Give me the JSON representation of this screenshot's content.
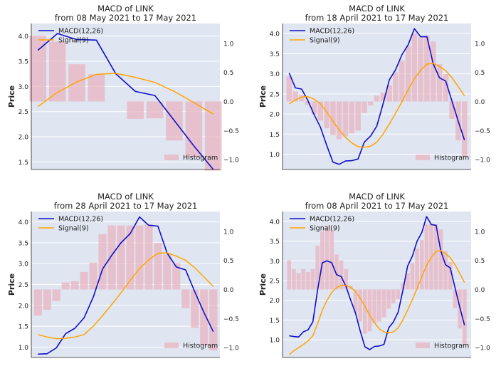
{
  "chart_data": [
    {
      "type": "line",
      "title": "MACD of LINK",
      "subtitle": "from 08 May 2021 to 17 May 2021",
      "ylabel": "Price",
      "ylim": [
        1.35,
        4.25
      ],
      "y2lim": [
        -1.17,
        1.34
      ],
      "yticks": [
        1.5,
        2.0,
        2.5,
        3.0,
        3.5,
        4.0
      ],
      "yticks_labels": [
        "1.5",
        "2.0",
        "2.5",
        "3.0",
        "3.5",
        "4.0"
      ],
      "y2ticks": [
        1.0,
        0.5,
        0.0,
        -0.5,
        -1.0
      ],
      "y2ticks_labels": [
        "1.0",
        "0.5",
        "0.0",
        "−0.5",
        "−1.0"
      ],
      "legend_position": "top-left",
      "series": [
        {
          "name": "MACD(12,26)",
          "axis": "left",
          "color": "#1010c8",
          "values": [
            3.72,
            4.05,
            3.93,
            3.92,
            3.25,
            2.9,
            2.82,
            2.32,
            1.82,
            1.35
          ]
        },
        {
          "name": "Signal(9)",
          "axis": "left",
          "color": "#ffa500",
          "values": [
            2.6,
            2.88,
            3.09,
            3.24,
            3.26,
            3.18,
            3.08,
            2.9,
            2.68,
            2.45
          ]
        }
      ],
      "histogram": {
        "name": "Histogram",
        "axis": "right",
        "color": "#e8b4c0",
        "values": [
          1.13,
          1.03,
          0.64,
          0.47,
          0.0,
          -0.3,
          -0.29,
          -0.67,
          -0.96,
          -1.19
        ]
      }
    },
    {
      "type": "line",
      "title": "MACD of LINK",
      "subtitle": "from 18 April 2021 to 17 May 2021",
      "ylabel": "Price",
      "ylim": [
        0.62,
        4.25
      ],
      "y2lim": [
        -1.17,
        1.34
      ],
      "yticks": [
        1.0,
        1.5,
        2.0,
        2.5,
        3.0,
        3.5,
        4.0
      ],
      "yticks_labels": [
        "1.0",
        "1.5",
        "2.0",
        "2.5",
        "3.0",
        "3.5",
        "4.0"
      ],
      "y2ticks": [
        1.0,
        0.5,
        0.0,
        -0.5,
        -1.0
      ],
      "y2ticks_labels": [
        "1.0",
        "0.5",
        "0.0",
        "−0.5",
        "−1.0"
      ],
      "legend_position": "top-left",
      "series": [
        {
          "name": "MACD(12,26)",
          "axis": "left",
          "color": "#1010c8",
          "values": [
            3.02,
            2.65,
            2.62,
            2.33,
            1.98,
            1.67,
            1.22,
            0.8,
            0.75,
            0.83,
            0.84,
            0.88,
            1.3,
            1.45,
            1.7,
            2.25,
            2.85,
            3.1,
            3.47,
            3.72,
            4.12,
            3.92,
            3.92,
            3.25,
            2.9,
            2.82,
            2.32,
            1.82,
            1.35
          ]
        },
        {
          "name": "Signal(9)",
          "axis": "left",
          "color": "#ffa500",
          "values": [
            2.25,
            2.35,
            2.42,
            2.43,
            2.37,
            2.25,
            2.05,
            1.82,
            1.6,
            1.42,
            1.28,
            1.19,
            1.17,
            1.2,
            1.3,
            1.5,
            1.75,
            2.02,
            2.3,
            2.6,
            2.88,
            3.09,
            3.24,
            3.26,
            3.18,
            3.08,
            2.9,
            2.68,
            2.45
          ]
        }
      ],
      "histogram": {
        "name": "Histogram",
        "axis": "right",
        "color": "#e8b4c0",
        "values": [
          0.43,
          0.17,
          0.11,
          -0.06,
          -0.22,
          -0.33,
          -0.46,
          -0.58,
          -0.65,
          -0.6,
          -0.55,
          -0.5,
          -0.2,
          -0.07,
          0.1,
          0.15,
          0.28,
          0.5,
          0.7,
          0.95,
          1.17,
          1.1,
          1.13,
          1.03,
          0.64,
          0.47,
          -0.3,
          -0.67,
          -0.96
        ]
      }
    },
    {
      "type": "line",
      "title": "MACD of LINK",
      "subtitle": "from 28 April 2021 to 17 May 2021",
      "ylabel": "Price",
      "ylim": [
        0.75,
        4.25
      ],
      "y2lim": [
        -1.17,
        1.34
      ],
      "yticks": [
        1.0,
        1.5,
        2.0,
        2.5,
        3.0,
        3.5,
        4.0
      ],
      "yticks_labels": [
        "1.0",
        "1.5",
        "2.0",
        "2.5",
        "3.0",
        "3.5",
        "4.0"
      ],
      "y2ticks": [
        1.0,
        0.5,
        0.0,
        -0.5,
        -1.0
      ],
      "y2ticks_labels": [
        "1.0",
        "0.5",
        "0.0",
        "−0.5",
        "−1.0"
      ],
      "legend_position": "top-left",
      "series": [
        {
          "name": "MACD(12,26)",
          "axis": "left",
          "color": "#1010c8",
          "values": [
            0.83,
            0.84,
            0.98,
            1.32,
            1.45,
            1.7,
            2.2,
            2.87,
            3.2,
            3.5,
            3.72,
            4.12,
            3.92,
            3.9,
            3.25,
            2.92,
            2.85,
            2.32,
            1.82,
            1.37
          ]
        },
        {
          "name": "Signal(9)",
          "axis": "left",
          "color": "#ffa500",
          "values": [
            1.3,
            1.24,
            1.2,
            1.21,
            1.24,
            1.3,
            1.5,
            1.75,
            2.02,
            2.3,
            2.6,
            2.88,
            3.09,
            3.25,
            3.26,
            3.18,
            3.08,
            2.9,
            2.68,
            2.45
          ]
        }
      ],
      "histogram": {
        "name": "Histogram",
        "axis": "right",
        "color": "#e8b4c0",
        "values": [
          -0.45,
          -0.35,
          -0.2,
          0.12,
          0.14,
          0.3,
          0.46,
          0.95,
          1.1,
          1.1,
          1.1,
          1.1,
          1.12,
          0.8,
          0.6,
          0.45,
          -0.32,
          -0.66,
          -0.96,
          -1.05
        ]
      }
    },
    {
      "type": "line",
      "title": "MACD of LINK",
      "subtitle": "from 08 April 2021 to 17 May 2021",
      "ylabel": "Price",
      "ylim": [
        0.55,
        4.25
      ],
      "y2lim": [
        -1.17,
        1.34
      ],
      "yticks": [
        1.0,
        1.5,
        2.0,
        2.5,
        3.0,
        3.5,
        4.0
      ],
      "yticks_labels": [
        "1.0",
        "1.5",
        "2.0",
        "2.5",
        "3.0",
        "3.5",
        "4.0"
      ],
      "y2ticks": [
        1.0,
        0.5,
        0.0,
        -0.5,
        -1.0
      ],
      "y2ticks_labels": [
        "1.0",
        "0.5",
        "0.0",
        "−0.5",
        "−1.0"
      ],
      "legend_position": "top-left",
      "series": [
        {
          "name": "MACD(12,26)",
          "axis": "left",
          "color": "#1010c8",
          "values": [
            1.1,
            1.08,
            1.07,
            1.2,
            1.25,
            1.45,
            2.25,
            2.95,
            3.0,
            2.95,
            2.65,
            2.6,
            2.35,
            2.0,
            1.68,
            1.22,
            0.82,
            0.75,
            0.83,
            0.84,
            0.88,
            1.3,
            1.45,
            1.7,
            2.25,
            2.87,
            3.12,
            3.5,
            3.72,
            4.12,
            3.92,
            3.9,
            3.25,
            2.9,
            2.82,
            2.32,
            1.82,
            1.37
          ]
        },
        {
          "name": "Signal(9)",
          "axis": "left",
          "color": "#ffa500",
          "values": [
            0.62,
            0.72,
            0.8,
            0.88,
            0.97,
            1.1,
            1.4,
            1.75,
            2.0,
            2.2,
            2.32,
            2.38,
            2.38,
            2.33,
            2.22,
            2.05,
            1.85,
            1.62,
            1.43,
            1.28,
            1.2,
            1.17,
            1.2,
            1.3,
            1.5,
            1.75,
            2.02,
            2.3,
            2.6,
            2.88,
            3.09,
            3.24,
            3.26,
            3.18,
            3.08,
            2.9,
            2.68,
            2.45
          ]
        }
      ],
      "histogram": {
        "name": "Histogram",
        "axis": "right",
        "color": "#e8b4c0",
        "values": [
          0.5,
          0.35,
          0.28,
          0.35,
          0.3,
          0.35,
          0.75,
          1.0,
          1.1,
          1.02,
          0.6,
          0.5,
          0.35,
          0.06,
          -0.4,
          -0.55,
          -0.76,
          -0.72,
          -0.58,
          -0.55,
          -0.48,
          -0.33,
          -0.24,
          -0.17,
          0.1,
          0.28,
          0.45,
          0.7,
          0.85,
          1.12,
          1.12,
          1.12,
          1.03,
          0.66,
          0.47,
          -0.32,
          -0.67,
          -0.96
        ]
      }
    }
  ]
}
